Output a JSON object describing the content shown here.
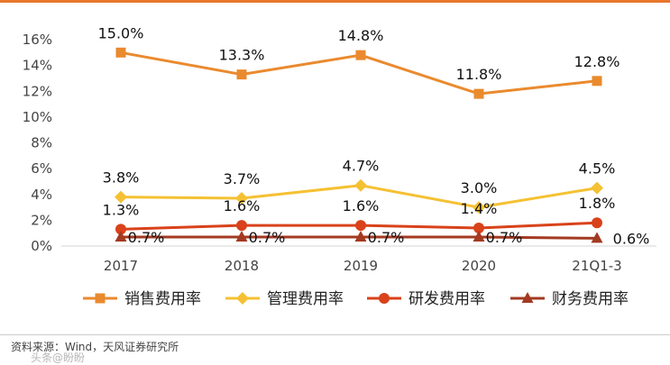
{
  "chart_data": {
    "type": "line",
    "title": "",
    "xlabel": "",
    "ylabel": "",
    "categories": [
      "2017",
      "2018",
      "2019",
      "2020",
      "21Q1-3"
    ],
    "ylim": [
      0,
      16
    ],
    "yticks": [
      "0%",
      "2%",
      "4%",
      "6%",
      "8%",
      "10%",
      "12%",
      "14%",
      "16%"
    ],
    "legend_position": "bottom",
    "series": [
      {
        "name": "销售费用率",
        "color": "#ea8a2e",
        "marker": "square",
        "values": [
          15.0,
          13.3,
          14.8,
          11.8,
          12.8
        ],
        "labels": [
          "15.0%",
          "13.3%",
          "14.8%",
          "11.8%",
          "12.8%"
        ]
      },
      {
        "name": "管理费用率",
        "color": "#f5c133",
        "marker": "diamond",
        "values": [
          3.8,
          3.7,
          4.7,
          3.0,
          4.5
        ],
        "labels": [
          "3.8%",
          "3.7%",
          "4.7%",
          "3.0%",
          "4.5%"
        ]
      },
      {
        "name": "研发费用率",
        "color": "#d9421b",
        "marker": "circle",
        "values": [
          1.3,
          1.6,
          1.6,
          1.4,
          1.8
        ],
        "labels": [
          "1.3%",
          "1.6%",
          "1.6%",
          "1.4%",
          "1.8%"
        ]
      },
      {
        "name": "财务费用率",
        "color": "#a33a21",
        "marker": "triangle",
        "values": [
          0.7,
          0.7,
          0.7,
          0.7,
          0.6
        ],
        "labels": [
          "0.7%",
          "0.7%",
          "0.7%",
          "0.7%",
          "0.6%"
        ]
      }
    ]
  },
  "source": "资料来源：Wind，天风证券研究所",
  "watermark": "头条@盼盼"
}
